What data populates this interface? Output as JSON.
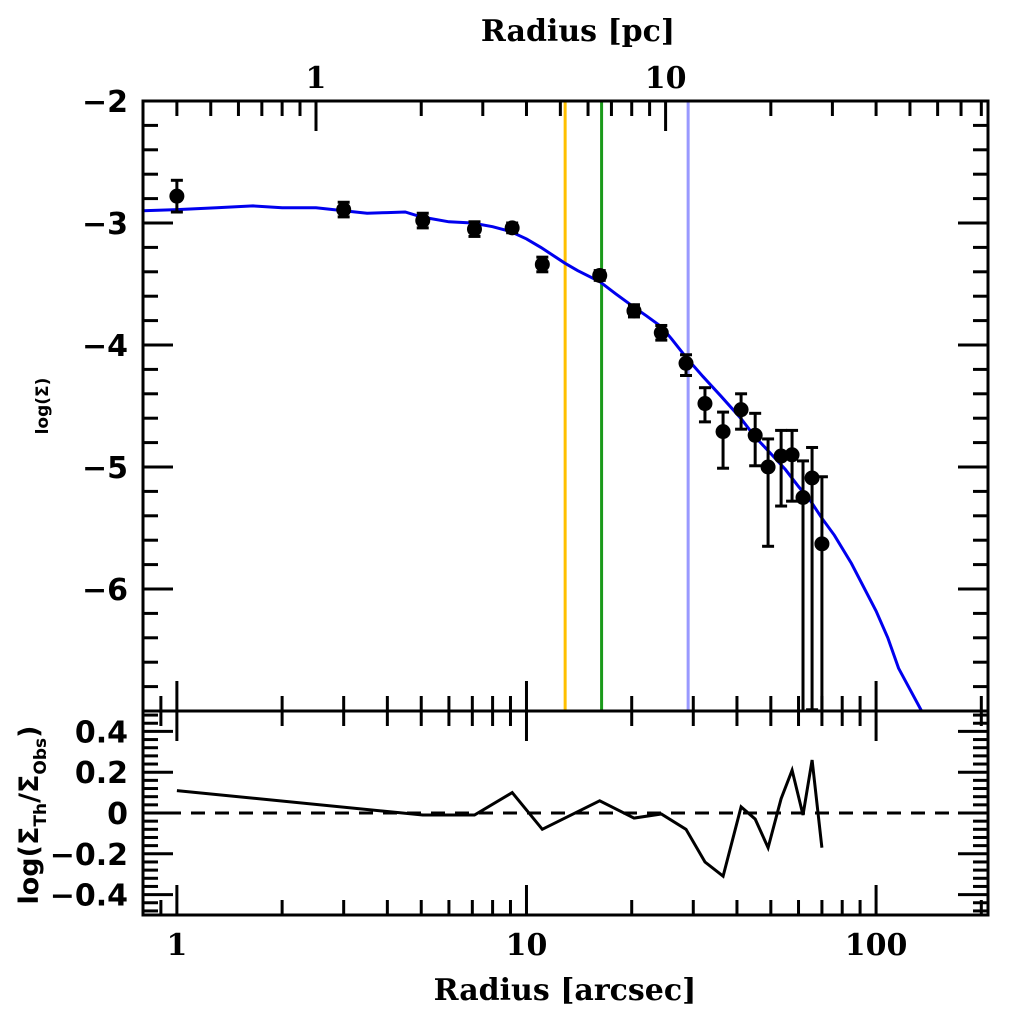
{
  "chart_data": [
    {
      "type": "scatter",
      "panel": "main",
      "title": "",
      "top_xlabel": "Radius [pc]",
      "top_xticks": [
        "1",
        "10"
      ],
      "ylabel": "log(Σ)",
      "xscale": "log",
      "xlim": [
        0.8,
        209
      ],
      "ylim": [
        -7,
        -2
      ],
      "xticks": [
        "1",
        "10",
        "100"
      ],
      "yticks": [
        "-2",
        "-3",
        "-4",
        "-5",
        "-6"
      ],
      "ytick_values": [
        -2,
        -3,
        -4,
        -5,
        -6
      ],
      "xtick_values": [
        1,
        10,
        100
      ],
      "top_xtick_pc_values": [
        1,
        10
      ],
      "pc_per_arcsec": 0.4,
      "series": [
        {
          "name": "observed",
          "color": "#000000",
          "points": [
            {
              "x": 1.0,
              "y": -2.78,
              "err_lo": 0.13,
              "err_hi": 0.13
            },
            {
              "x": 3.0,
              "y": -2.89,
              "err_lo": 0.06,
              "err_hi": 0.06
            },
            {
              "x": 5.05,
              "y": -2.98,
              "err_lo": 0.06,
              "err_hi": 0.06
            },
            {
              "x": 7.1,
              "y": -3.05,
              "err_lo": 0.06,
              "err_hi": 0.06
            },
            {
              "x": 9.1,
              "y": -3.04,
              "err_lo": 0.04,
              "err_hi": 0.04
            },
            {
              "x": 11.1,
              "y": -3.34,
              "err_lo": 0.06,
              "err_hi": 0.06
            },
            {
              "x": 16.2,
              "y": -3.43,
              "err_lo": 0.04,
              "err_hi": 0.04
            },
            {
              "x": 20.3,
              "y": -3.72,
              "err_lo": 0.05,
              "err_hi": 0.05
            },
            {
              "x": 24.3,
              "y": -3.9,
              "err_lo": 0.06,
              "err_hi": 0.06
            },
            {
              "x": 28.6,
              "y": -4.15,
              "err_lo": 0.1,
              "err_hi": 0.07
            },
            {
              "x": 32.4,
              "y": -4.48,
              "err_lo": 0.15,
              "err_hi": 0.13
            },
            {
              "x": 36.5,
              "y": -4.71,
              "err_lo": 0.3,
              "err_hi": 0.16
            },
            {
              "x": 41.1,
              "y": -4.53,
              "err_lo": 0.16,
              "err_hi": 0.13
            },
            {
              "x": 45.1,
              "y": -4.74,
              "err_lo": 0.25,
              "err_hi": 0.18
            },
            {
              "x": 49.1,
              "y": -5.0,
              "err_lo": 0.65,
              "err_hi": 0.23
            },
            {
              "x": 53.5,
              "y": -4.91,
              "err_lo": 0.41,
              "err_hi": 0.21
            },
            {
              "x": 57.5,
              "y": -4.9,
              "err_lo": 0.38,
              "err_hi": 0.2
            },
            {
              "x": 61.8,
              "y": -5.25,
              "err_lo": 1.8,
              "err_hi": 0.3
            },
            {
              "x": 65.6,
              "y": -5.09,
              "err_lo": 1.9,
              "err_hi": 0.25
            },
            {
              "x": 70.0,
              "y": -5.63,
              "err_lo": 1.4,
              "err_hi": 0.55
            }
          ]
        },
        {
          "name": "model",
          "type": "line",
          "color": "#0000ee",
          "x": [
            0.8,
            1.0,
            1.3,
            1.65,
            2.0,
            2.5,
            3.0,
            3.5,
            4.0,
            4.5,
            5.0,
            6.0,
            7.0,
            8.0,
            9.0,
            10.0,
            11.0,
            12.9,
            14.0,
            16.2,
            18.0,
            20.3,
            22.0,
            24.3,
            26.0,
            28.6,
            32.0,
            36.0,
            41.0,
            45.0,
            50.0,
            55.0,
            60.0,
            65.0,
            70.0,
            76.0,
            85.0,
            100.0,
            108.0,
            116.0,
            135.0
          ],
          "y": [
            -2.9,
            -2.89,
            -2.875,
            -2.86,
            -2.875,
            -2.875,
            -2.9,
            -2.92,
            -2.915,
            -2.91,
            -2.95,
            -2.99,
            -3.0,
            -3.03,
            -3.07,
            -3.13,
            -3.2,
            -3.33,
            -3.39,
            -3.48,
            -3.58,
            -3.69,
            -3.76,
            -3.85,
            -3.95,
            -4.1,
            -4.26,
            -4.42,
            -4.6,
            -4.75,
            -4.89,
            -5.02,
            -5.16,
            -5.28,
            -5.42,
            -5.56,
            -5.79,
            -6.18,
            -6.4,
            -6.65,
            -7.0
          ]
        }
      ],
      "vlines": [
        {
          "name": "orange-line",
          "x": 12.9,
          "color": "#ffc000"
        },
        {
          "name": "green-line",
          "x": 16.4,
          "color": "#1a9a1a"
        },
        {
          "name": "lightblue-line",
          "x": 29.0,
          "color": "#9999ff"
        }
      ]
    },
    {
      "type": "line",
      "panel": "residual",
      "xlabel": "Radius [arcsec]",
      "ylabel_parts": {
        "prefix": "log(Σ",
        "sub1": "Th",
        "mid": "/Σ",
        "sub2": "Obs",
        "suffix": ")"
      },
      "xscale": "log",
      "xlim": [
        0.8,
        209
      ],
      "ylim": [
        -0.5,
        0.5
      ],
      "xticks": [
        "1",
        "10",
        "100"
      ],
      "yticks": [
        "0.4",
        "0.2",
        "0",
        "-0.2",
        "-0.4"
      ],
      "ytick_values": [
        0.4,
        0.2,
        0,
        -0.2,
        -0.4
      ],
      "reference_line": {
        "y": 0,
        "style": "dashed"
      },
      "x": [
        1.0,
        5.05,
        7.1,
        9.1,
        11.1,
        16.2,
        20.3,
        24.3,
        28.6,
        32.4,
        36.5,
        41.1,
        45.1,
        49.1,
        53.5,
        57.5,
        61.8,
        65.6,
        70.0
      ],
      "y": [
        0.11,
        -0.01,
        -0.01,
        0.1,
        -0.08,
        0.06,
        -0.025,
        -0.005,
        -0.08,
        -0.24,
        -0.31,
        0.03,
        -0.03,
        -0.17,
        0.07,
        0.21,
        -0.01,
        0.26,
        -0.17
      ]
    }
  ]
}
